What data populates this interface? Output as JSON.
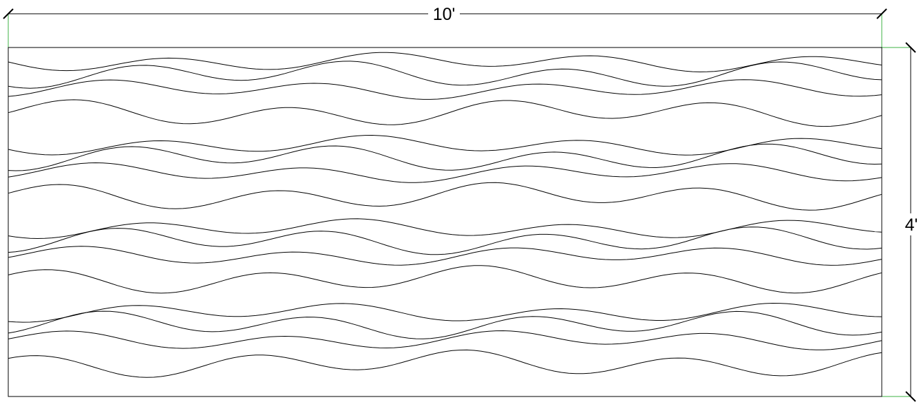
{
  "drawing": {
    "width_label": "10'",
    "height_label": "4'",
    "colors": {
      "line": "#000000",
      "extension_line": "#3cb043",
      "background": "#ffffff"
    }
  }
}
